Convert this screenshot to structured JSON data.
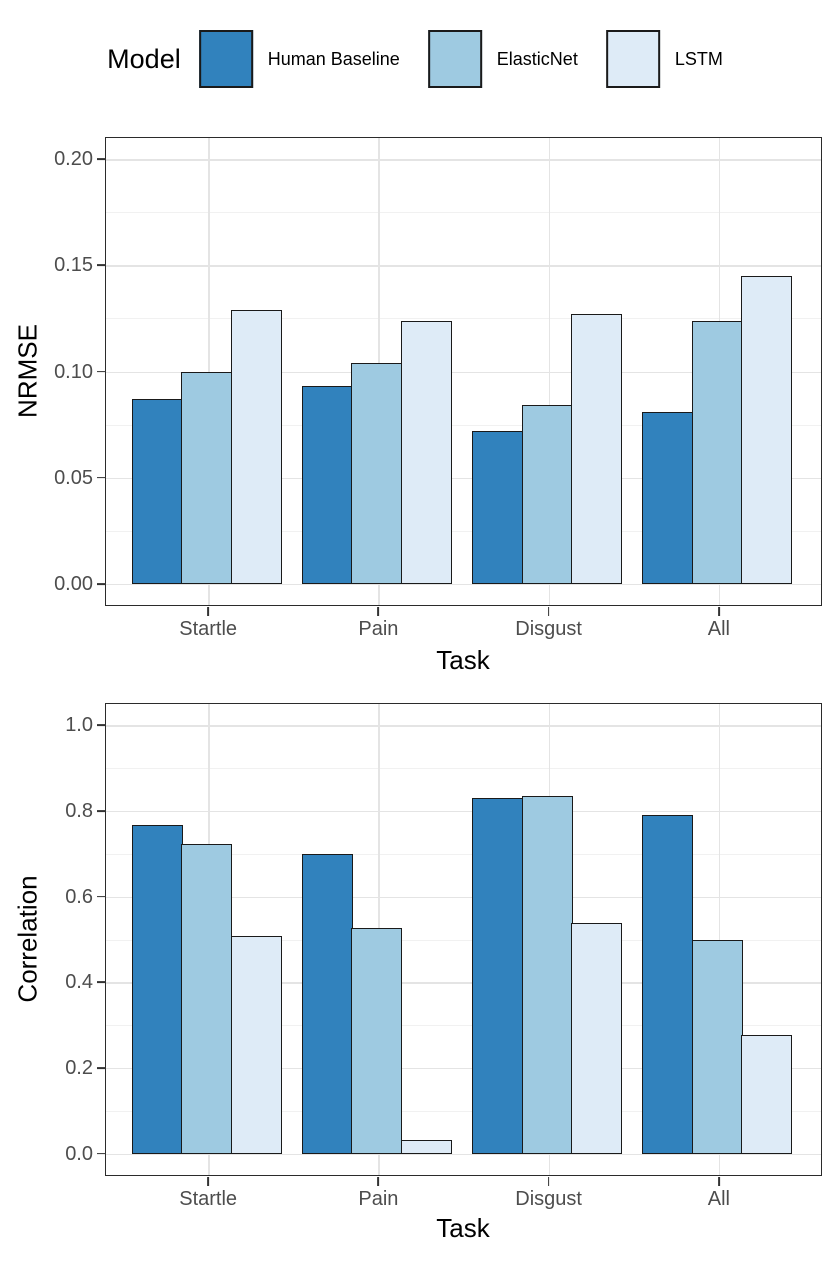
{
  "legend": {
    "title": "Model",
    "items": [
      {
        "label": "Human Baseline",
        "color": "#3182BD"
      },
      {
        "label": "ElasticNet",
        "color": "#9ECAE1"
      },
      {
        "label": "LSTM",
        "color": "#DEEBF7"
      }
    ]
  },
  "colors": {
    "bar_outline": "#1a1a1a",
    "panel_border": "#2b2b2b",
    "grid_major": "#e4e4e4",
    "grid_minor": "#f1f1f1",
    "tick_text": "#4d4d4d"
  },
  "chart_data": [
    {
      "type": "bar",
      "title": "",
      "categories": [
        "Startle",
        "Pain",
        "Disgust",
        "All"
      ],
      "series": [
        {
          "name": "Human Baseline",
          "color": "#3182BD",
          "values": [
            0.087,
            0.093,
            0.072,
            0.081
          ]
        },
        {
          "name": "ElasticNet",
          "color": "#9ECAE1",
          "values": [
            0.1,
            0.104,
            0.084,
            0.124
          ]
        },
        {
          "name": "LSTM",
          "color": "#DEEBF7",
          "values": [
            0.129,
            0.124,
            0.127,
            0.145
          ]
        }
      ],
      "xlabel": "Task",
      "ylabel": "NRMSE",
      "ylim": [
        0,
        0.2
      ],
      "yticks": [
        {
          "v": 0.0,
          "label": "0.00"
        },
        {
          "v": 0.05,
          "label": "0.05"
        },
        {
          "v": 0.1,
          "label": "0.10"
        },
        {
          "v": 0.15,
          "label": "0.15"
        },
        {
          "v": 0.2,
          "label": "0.20"
        }
      ],
      "grid": "major+minor",
      "legend_position": "top"
    },
    {
      "type": "bar",
      "title": "",
      "categories": [
        "Startle",
        "Pain",
        "Disgust",
        "All"
      ],
      "series": [
        {
          "name": "Human Baseline",
          "color": "#3182BD",
          "values": [
            0.768,
            0.699,
            0.83,
            0.791
          ]
        },
        {
          "name": "ElasticNet",
          "color": "#9ECAE1",
          "values": [
            0.723,
            0.527,
            0.835,
            0.498
          ]
        },
        {
          "name": "LSTM",
          "color": "#DEEBF7",
          "values": [
            0.508,
            0.031,
            0.539,
            0.276
          ]
        }
      ],
      "xlabel": "Task",
      "ylabel": "Correlation",
      "ylim": [
        0,
        1.0
      ],
      "yticks": [
        {
          "v": 0.0,
          "label": "0.0"
        },
        {
          "v": 0.2,
          "label": "0.2"
        },
        {
          "v": 0.4,
          "label": "0.4"
        },
        {
          "v": 0.6,
          "label": "0.6"
        },
        {
          "v": 0.8,
          "label": "0.8"
        },
        {
          "v": 1.0,
          "label": "1.0"
        }
      ],
      "grid": "major+minor",
      "legend_position": "top"
    }
  ]
}
